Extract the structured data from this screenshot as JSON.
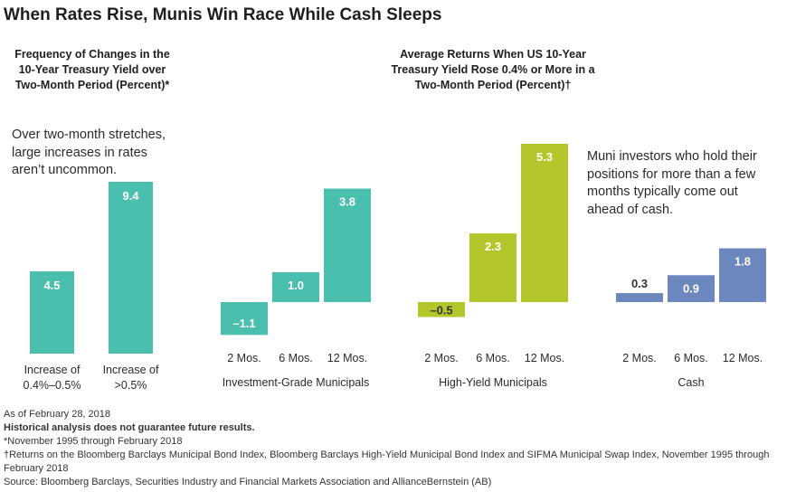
{
  "page_title": "When Rates Rise, Munis Win Race While Cash Sleeps",
  "chart_data": [
    {
      "type": "bar",
      "title": "Frequency of Changes in the 10-Year Treasury Yield over Two-Month Period (Percent)*",
      "title_lines": [
        "Frequency of Changes in the",
        "10-Year Treasury Yield over",
        "Two-Month Period (Percent)*"
      ],
      "annotation_lines": [
        "Over two-month stretches,",
        "large increases in rates",
        "aren’t uncommon."
      ],
      "categories": [
        "Increase of 0.4%–0.5%",
        "Increase of >0.5%"
      ],
      "category_lines": [
        [
          "Increase of",
          "0.4%–0.5%"
        ],
        [
          "Increase of",
          ">0.5%"
        ]
      ],
      "values": [
        4.5,
        9.4
      ],
      "value_labels": [
        "4.5",
        "9.4"
      ],
      "ylim": [
        0,
        10
      ],
      "grid": false,
      "color": "#4bbfad"
    },
    {
      "type": "bar",
      "title": "Average Returns When US 10-Year Treasury Yield Rose 0.4% or More in a Two-Month Period (Percent)†",
      "title_lines": [
        "Average Returns When US 10-Year",
        "Treasury Yield Rose 0.4% or More in a",
        "Two-Month Period (Percent)†"
      ],
      "annotation_lines": [
        "Muni investors who hold their",
        "positions for more than a few",
        "months typically come out",
        "ahead of cash."
      ],
      "grid": false,
      "ylim": [
        -1.5,
        5.5
      ],
      "groups": [
        {
          "name": "Investment-Grade Municipals",
          "color": "#4bbfad",
          "categories": [
            "2 Mos.",
            "6 Mos.",
            "12 Mos."
          ],
          "values": [
            -1.1,
            1.0,
            3.8
          ],
          "value_labels": [
            "–1.1",
            "1.0",
            "3.8"
          ]
        },
        {
          "name": "High-Yield Municipals",
          "color": "#b3c72c",
          "categories": [
            "2 Mos.",
            "6 Mos.",
            "12 Mos."
          ],
          "values": [
            -0.5,
            2.3,
            5.3
          ],
          "value_labels": [
            "–0.5",
            "2.3",
            "5.3"
          ]
        },
        {
          "name": "Cash",
          "color": "#6b87be",
          "categories": [
            "2 Mos.",
            "6 Mos.",
            "12 Mos."
          ],
          "values": [
            0.3,
            0.9,
            1.8
          ],
          "value_labels": [
            "0.3",
            "0.9",
            "1.8"
          ]
        }
      ]
    }
  ],
  "footer": {
    "as_of": "As of February 28, 2018",
    "disclaimer": "Historical analysis does not guarantee future results.",
    "note1": "*November 1995 through February 2018",
    "note2": "†Returns on the Bloomberg Barclays Municipal Bond Index, Bloomberg Barclays High-Yield Municipal Bond Index and SIFMA Municipal Swap Index, November 1995 through February 2018",
    "source": "Source: Bloomberg Barclays, Securities Industry and Financial Markets Association and AllianceBernstein (AB)"
  }
}
